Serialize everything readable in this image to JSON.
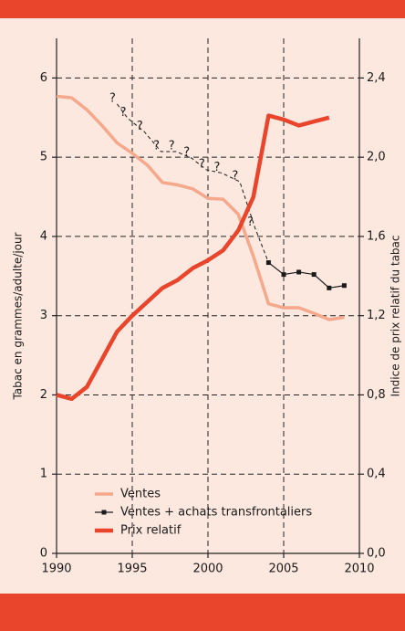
{
  "chart_data": {
    "type": "line",
    "x": [
      1990,
      1991,
      1992,
      1993,
      1994,
      1995,
      1996,
      1997,
      1998,
      1999,
      2000,
      2001,
      2002,
      2003,
      2004,
      2005,
      2006,
      2007,
      2008,
      2009
    ],
    "xlim": [
      1990,
      2010
    ],
    "xticks": [
      1990,
      1995,
      2000,
      2005,
      2010
    ],
    "ylim": [
      0,
      6.5
    ],
    "yticks": [
      0,
      1,
      2,
      3,
      4,
      5,
      6
    ],
    "y2lim": [
      0,
      2.6
    ],
    "y2ticks": [
      {
        "value": 0,
        "label": "0,0"
      },
      {
        "value": 0.4,
        "label": "0,4"
      },
      {
        "value": 0.8,
        "label": "0,8"
      },
      {
        "value": 1.2,
        "label": "1,2"
      },
      {
        "value": 1.6,
        "label": "1,6"
      },
      {
        "value": 2.0,
        "label": "2,0"
      },
      {
        "value": 2.4,
        "label": "2,4"
      }
    ],
    "ylabel": "Tabac en grammes/adulte/jour",
    "y2label": "Indice de prix relatif du tabac",
    "grid": true,
    "series": [
      {
        "name": "Ventes",
        "color": "#f5a88b",
        "values": [
          5.77,
          5.75,
          5.6,
          5.4,
          5.18,
          5.05,
          4.9,
          4.68,
          4.65,
          4.6,
          4.48,
          4.47,
          4.28,
          3.75,
          3.15,
          3.1,
          3.1,
          3.03,
          2.95,
          2.98
        ]
      },
      {
        "name": "Ventes + achats transfrontaliers",
        "color": "#1a1a1a",
        "values": [
          null,
          null,
          null,
          null,
          null,
          null,
          null,
          null,
          null,
          null,
          null,
          null,
          null,
          null,
          3.67,
          3.52,
          3.55,
          3.52,
          3.35,
          3.38
        ]
      },
      {
        "name": "Prix relatif",
        "color": "#e8452c",
        "axis": "y2",
        "values": [
          0.8,
          0.78,
          0.84,
          0.98,
          1.12,
          1.2,
          1.27,
          1.34,
          1.38,
          1.44,
          1.48,
          1.53,
          1.63,
          1.8,
          2.21,
          2.19,
          2.16,
          2.18,
          2.2,
          null
        ]
      }
    ],
    "annotations": [
      {
        "text": "?",
        "x": 1993.7,
        "y": 5.74
      },
      {
        "text": "?",
        "x": 1994.4,
        "y": 5.56
      },
      {
        "text": "?",
        "x": 1995.5,
        "y": 5.39
      },
      {
        "text": "?",
        "x": 1996.6,
        "y": 5.14
      },
      {
        "text": "?",
        "x": 1997.6,
        "y": 5.14
      },
      {
        "text": "?",
        "x": 1998.6,
        "y": 5.06
      },
      {
        "text": "?",
        "x": 1999.6,
        "y": 4.91
      },
      {
        "text": "?",
        "x": 2000.6,
        "y": 4.87
      },
      {
        "text": "?",
        "x": 2001.8,
        "y": 4.76
      },
      {
        "text": "?",
        "x": 2002.8,
        "y": 4.18
      }
    ]
  }
}
